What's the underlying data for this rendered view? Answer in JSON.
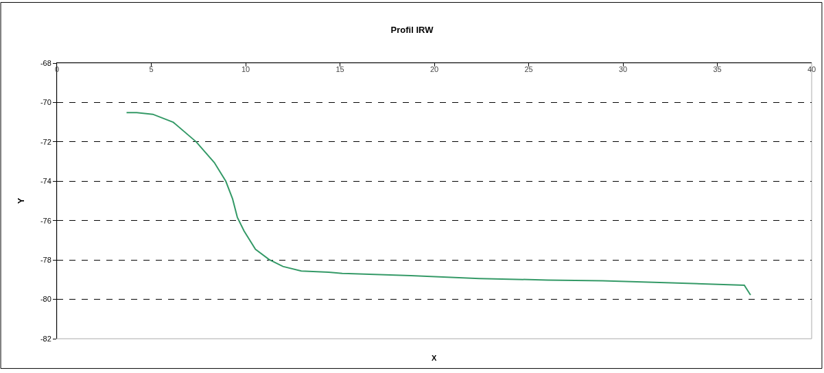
{
  "chart_data": {
    "type": "line",
    "title": "Profil IRW",
    "xlabel": "X",
    "ylabel": "Y",
    "x": [
      3.69,
      4.23,
      5.08,
      6.17,
      7.38,
      8.34,
      8.95,
      9.31,
      9.56,
      9.92,
      10.52,
      11.25,
      11.98,
      12.95,
      14.4,
      15.12,
      18.76,
      22.38,
      26.01,
      28.92,
      32.55,
      36.43,
      36.76
    ],
    "series": [
      {
        "color": "#339966",
        "values": [
          -70.52,
          -70.52,
          -70.6,
          -71.01,
          -72.0,
          -73.05,
          -74.0,
          -74.9,
          -75.83,
          -76.53,
          -77.46,
          -77.98,
          -78.33,
          -78.56,
          -78.62,
          -78.68,
          -78.8,
          -78.94,
          -79.02,
          -79.06,
          -79.16,
          -79.28,
          -79.78
        ]
      }
    ],
    "xlim": [
      0,
      40
    ],
    "xticks": [
      0,
      5,
      10,
      15,
      20,
      25,
      30,
      35,
      40
    ],
    "ylim": [
      -82,
      -68
    ],
    "yticks": [
      -82,
      -80,
      -78,
      -76,
      -74,
      -72,
      -70,
      -68
    ],
    "grid": "y",
    "marker": "none",
    "line_style": "solid"
  }
}
